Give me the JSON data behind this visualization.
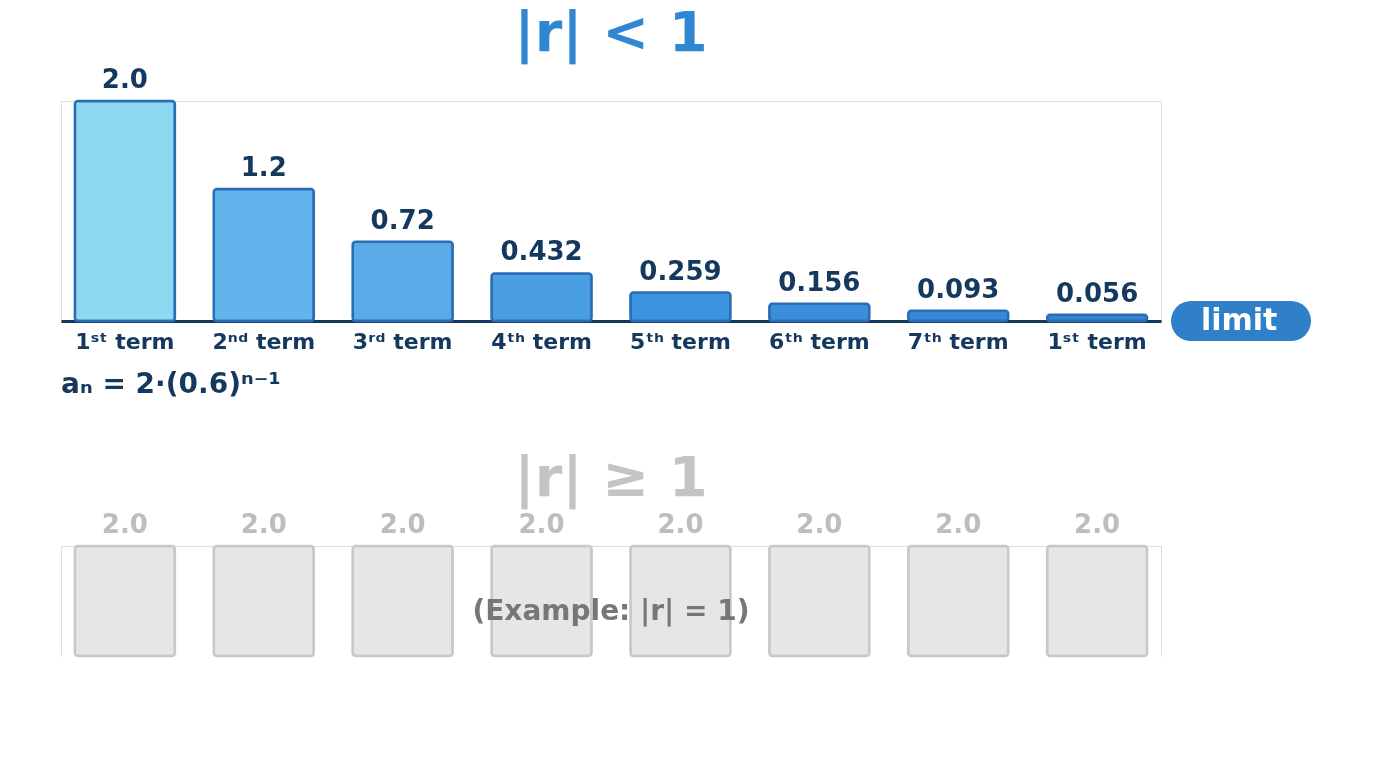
{
  "chart_data": [
    {
      "type": "bar",
      "title": "|r| < 1",
      "categories": [
        "1ˢᵗ term",
        "2ⁿᵈ term",
        "3ʳᵈ term",
        "4ᵗʰ term",
        "5ᵗʰ term",
        "6ᵗʰ term",
        "7ᵗʰ term",
        "1ˢᵗ term"
      ],
      "values": [
        2.0,
        1.2,
        0.72,
        0.432,
        0.259,
        0.156,
        0.093,
        0.056
      ],
      "value_labels": [
        "2.0",
        "1.2",
        "0.72",
        "0.432",
        "0.259",
        "0.156",
        "0.093",
        "0.056"
      ],
      "colors": [
        "#8fd8f2",
        "#62b4ec",
        "#5aaae8",
        "#4a9fe3",
        "#3d94de",
        "#3a8fdb",
        "#3589d8",
        "#3386d6"
      ],
      "annotations": [
        "aₙ = 2·(0.6)ⁿ⁻¹",
        "limit"
      ]
    },
    {
      "type": "bar",
      "title": "|r| ≥ 1",
      "categories": [
        null,
        null,
        null,
        null,
        null,
        null,
        null,
        null
      ],
      "values": [
        2.0,
        2.0,
        2.0,
        2.0,
        2.0,
        2.0,
        2.0,
        2.0
      ],
      "value_labels": [
        "2.0",
        "2.0",
        "2.0",
        "2.0",
        "2.0",
        "2.0",
        "2.0",
        "2.0"
      ],
      "color": "#e6e6e6",
      "annotations": [
        "(Example: |r| = 1)"
      ]
    }
  ]
}
